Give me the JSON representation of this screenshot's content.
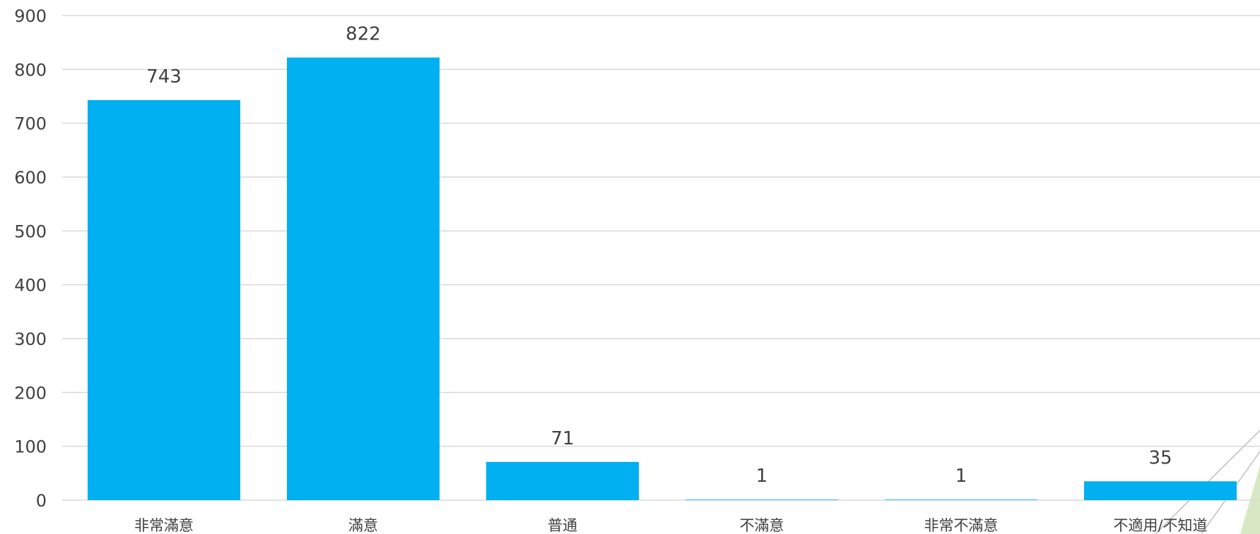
{
  "chart_data": {
    "type": "bar",
    "categories": [
      "非常滿意",
      "滿意",
      "普通",
      "不滿意",
      "非常不滿意",
      "不適用/不知道"
    ],
    "values": [
      743,
      822,
      71,
      1,
      1,
      35
    ],
    "data_labels": [
      "743",
      "822",
      "71",
      "1",
      "1",
      "35"
    ],
    "title": "",
    "xlabel": "",
    "ylabel": "",
    "ylim": [
      0,
      900
    ],
    "yticks": [
      0,
      100,
      200,
      300,
      400,
      500,
      600,
      700,
      800,
      900
    ],
    "grid": true,
    "legend": "none"
  },
  "colors": {
    "bar": "#00b0f0",
    "grid": "#d9d9d9",
    "text": "#404040",
    "decoration": "#d9e8c4"
  }
}
